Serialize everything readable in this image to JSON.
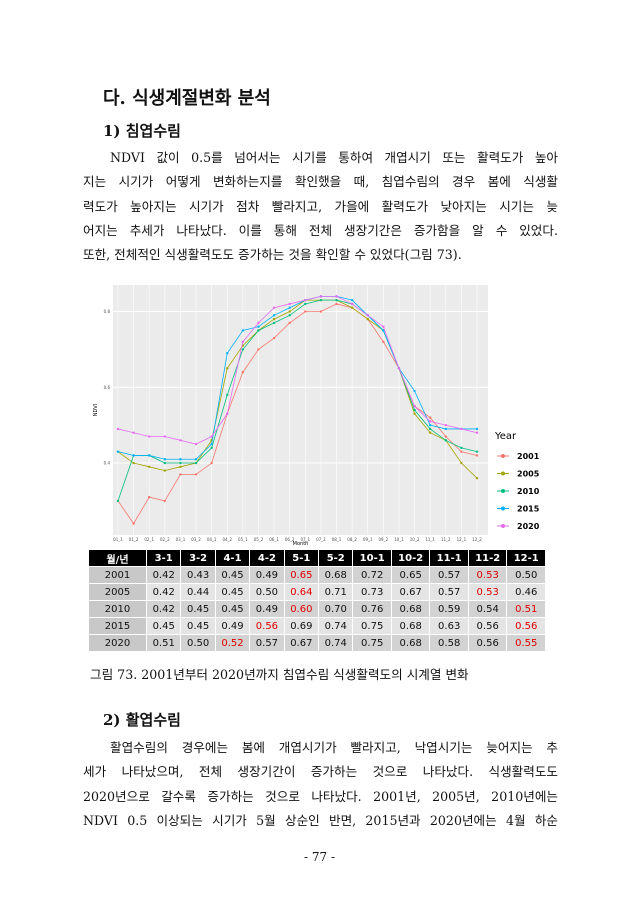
{
  "section": {
    "title": "다. 식생계절변화 분석"
  },
  "sub1": {
    "title": "1) 침엽수림",
    "lines": [
      "NDVI 값이 0.5를 넘어서는 시기를 통하여 개엽시기 또는 활력도가 높아",
      "지는 시기가 어떻게 변화하는지를 확인했을 때, 침엽수림의 경우 봄에 식생활",
      "력도가 높아지는 시기가 점차 빨라지고, 가을에 활력도가 낮아지는 시기는 늦",
      "어지는 추세가 나타났다. 이를 통해 전체 생장기간은 증가함을 알 수 있었다.",
      "또한, 전체적인 식생활력도도 증가하는 것을 확인할 수 있었다(그림 73)."
    ]
  },
  "chart_data": {
    "type": "line",
    "y_label": "NDVI",
    "x_label": "Month",
    "legend_title": "Year",
    "legend": "right",
    "grid": true,
    "categories": [
      "01_1",
      "01_2",
      "02_1",
      "02_2",
      "03_1",
      "03_2",
      "04_1",
      "04_2",
      "05_1",
      "05_2",
      "06_1",
      "06_2",
      "07_1",
      "07_2",
      "08_1",
      "08_2",
      "09_1",
      "09_2",
      "10_1",
      "10_2",
      "11_1",
      "11_2",
      "12_1",
      "12_2"
    ],
    "ylim": [
      0.21,
      0.87
    ],
    "yticks": [
      0.4,
      0.6,
      0.8
    ],
    "series": [
      {
        "name": "2001",
        "color": "#f8766d",
        "values": [
          0.3,
          0.24,
          0.31,
          0.3,
          0.37,
          0.37,
          0.4,
          0.53,
          0.64,
          0.7,
          0.73,
          0.77,
          0.8,
          0.8,
          0.82,
          0.81,
          0.78,
          0.72,
          0.65,
          0.55,
          0.52,
          0.47,
          0.43,
          0.42
        ]
      },
      {
        "name": "2005",
        "color": "#a3a500",
        "values": [
          0.43,
          0.4,
          0.39,
          0.38,
          0.39,
          0.4,
          0.46,
          0.65,
          0.71,
          0.75,
          0.78,
          0.8,
          0.83,
          0.83,
          0.83,
          0.81,
          0.78,
          0.75,
          0.65,
          0.53,
          0.48,
          0.46,
          0.4,
          0.36
        ]
      },
      {
        "name": "2010",
        "color": "#00bf7d",
        "values": [
          0.3,
          0.42,
          0.42,
          0.4,
          0.4,
          0.4,
          0.44,
          0.58,
          0.7,
          0.75,
          0.77,
          0.79,
          0.82,
          0.83,
          0.83,
          0.82,
          0.79,
          0.75,
          0.65,
          0.54,
          0.49,
          0.46,
          0.44,
          0.43
        ]
      },
      {
        "name": "2015",
        "color": "#00b0f6",
        "values": [
          0.43,
          0.42,
          0.42,
          0.41,
          0.41,
          0.41,
          0.45,
          0.69,
          0.75,
          0.76,
          0.79,
          0.81,
          0.83,
          0.84,
          0.84,
          0.83,
          0.79,
          0.75,
          0.65,
          0.59,
          0.5,
          0.49,
          0.49,
          0.49
        ]
      },
      {
        "name": "2020",
        "color": "#e76bf3",
        "values": [
          0.49,
          0.48,
          0.47,
          0.47,
          0.46,
          0.45,
          0.47,
          0.53,
          0.72,
          0.77,
          0.81,
          0.82,
          0.83,
          0.84,
          0.84,
          0.82,
          0.79,
          0.76,
          0.65,
          0.55,
          0.51,
          0.5,
          0.49,
          0.48
        ]
      }
    ]
  },
  "table": {
    "header": [
      "월/년",
      "3-1",
      "3-2",
      "4-1",
      "4-2",
      "5-1",
      "5-2",
      "10-1",
      "10-2",
      "11-1",
      "11-2",
      "12-1"
    ],
    "highlight_color": "#e00000",
    "rows": [
      {
        "cells": [
          "2001",
          "0.42",
          "0.43",
          "0.45",
          "0.49",
          "0.65",
          "0.68",
          "0.72",
          "0.65",
          "0.57",
          "0.53",
          "0.50"
        ],
        "red": [
          5,
          10
        ]
      },
      {
        "cells": [
          "2005",
          "0.42",
          "0.44",
          "0.45",
          "0.50",
          "0.64",
          "0.71",
          "0.73",
          "0.67",
          "0.57",
          "0.53",
          "0.46"
        ],
        "red": [
          5,
          10
        ]
      },
      {
        "cells": [
          "2010",
          "0.42",
          "0.45",
          "0.45",
          "0.49",
          "0.60",
          "0.70",
          "0.76",
          "0.68",
          "0.59",
          "0.54",
          "0.51"
        ],
        "red": [
          5,
          11
        ]
      },
      {
        "cells": [
          "2015",
          "0.45",
          "0.45",
          "0.49",
          "0.56",
          "0.69",
          "0.74",
          "0.75",
          "0.68",
          "0.63",
          "0.56",
          "0.56"
        ],
        "red": [
          4,
          11
        ]
      },
      {
        "cells": [
          "2020",
          "0.51",
          "0.50",
          "0.52",
          "0.57",
          "0.67",
          "0.74",
          "0.75",
          "0.68",
          "0.58",
          "0.56",
          "0.55"
        ],
        "red": [
          3,
          11
        ]
      }
    ]
  },
  "caption": "그림 73. 2001년부터 2020년까지 침엽수림 식생활력도의 시계열 변화",
  "sub2": {
    "title": "2) 활엽수림",
    "lines": [
      "활엽수림의 경우에는 봄에 개엽시기가 빨라지고, 낙엽시기는 늦어지는 추",
      "세가 나타났으며, 전체 생장기간이 증가하는 것으로 나타났다. 식생활력도도",
      "2020년으로 갈수록 증가하는 것으로 나타났다. 2001년, 2005년, 2010년에는",
      "NDVI 0.5 이상되는 시기가 5월 상순인 반면, 2015년과 2020년에는 4월 하순"
    ]
  },
  "page_number": "- 77 -"
}
